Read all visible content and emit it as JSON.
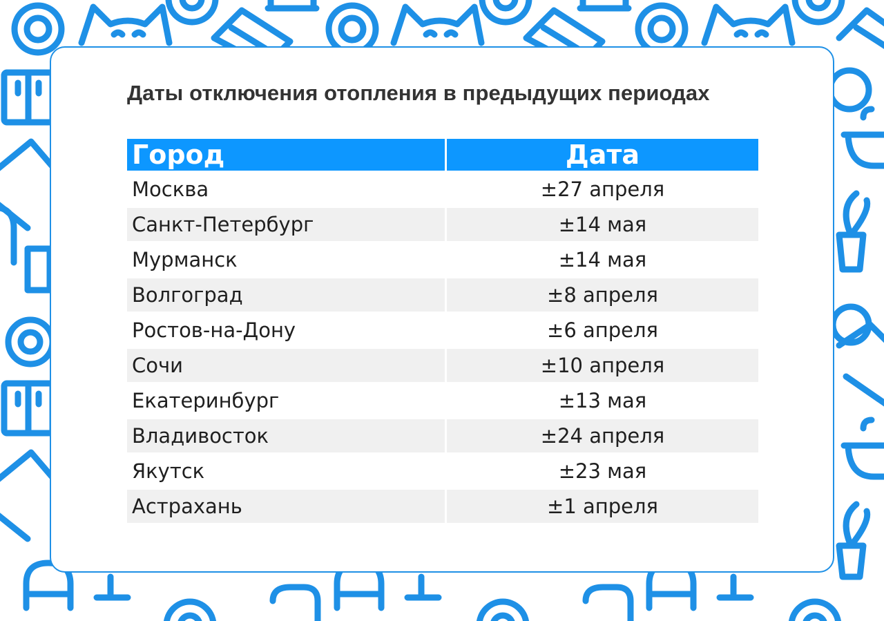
{
  "title": "Даты отключения отопления в предыдущих периодах",
  "table": {
    "headers": {
      "city": "Город",
      "date": "Дата"
    },
    "rows": [
      {
        "city": "Москва",
        "date": "±27 апреля"
      },
      {
        "city": "Санкт-Петербург",
        "date": "±14 мая"
      },
      {
        "city": "Мурманск",
        "date": "±14 мая"
      },
      {
        "city": "Волгоград",
        "date": "±8 апреля"
      },
      {
        "city": "Ростов-на-Дону",
        "date": "±6 апреля"
      },
      {
        "city": "Сочи",
        "date": "±10 апреля"
      },
      {
        "city": "Екатеринбург",
        "date": "±13 мая"
      },
      {
        "city": "Владивосток",
        "date": "±24 апреля"
      },
      {
        "city": "Якутск",
        "date": "±23 мая"
      },
      {
        "city": "Астрахань",
        "date": "±1 апреля"
      }
    ]
  },
  "colors": {
    "accent": "#0d97ff",
    "pattern": "#1e90e6",
    "row_alt": "#f0f0f0",
    "title_text": "#333333"
  },
  "icons": [
    "cat-icon",
    "target-icon",
    "sofa-icon",
    "cabinet-icon",
    "bathtub-icon",
    "plant-icon",
    "armchair-icon",
    "lamp-icon"
  ]
}
